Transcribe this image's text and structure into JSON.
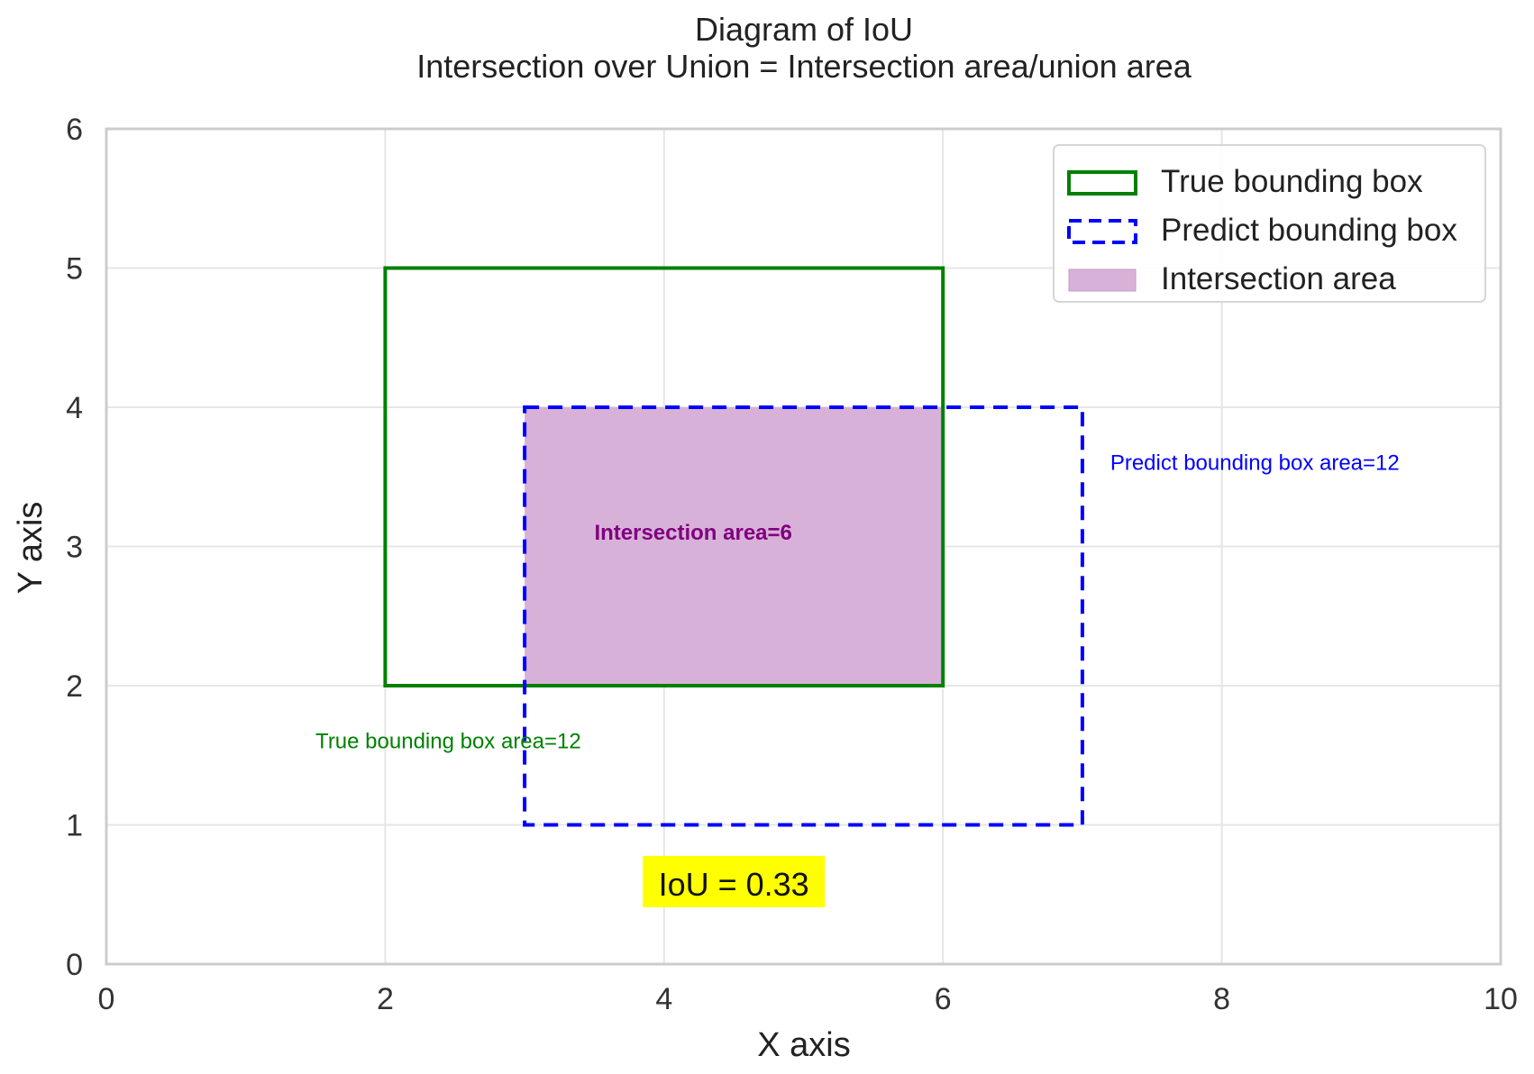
{
  "chart_data": {
    "type": "diagram",
    "title": "Diagram of IoU",
    "subtitle": "Intersection over Union = Intersection area/union area",
    "xlabel": "X axis",
    "ylabel": "Y axis",
    "xlim": [
      0,
      10
    ],
    "ylim": [
      0,
      6
    ],
    "xticks": [
      0,
      2,
      4,
      6,
      8,
      10
    ],
    "yticks": [
      0,
      1,
      2,
      3,
      4,
      5,
      6
    ],
    "grid": true,
    "legend_position": "top-right",
    "boxes": [
      {
        "name": "True bounding box",
        "x_min": 2,
        "y_min": 2,
        "x_max": 6,
        "y_max": 5,
        "style": "solid",
        "color": "#008000",
        "annotation": {
          "text": "True bounding box area=12",
          "x": 1.5,
          "y": 1.55
        }
      },
      {
        "name": "Predict bounding box",
        "x_min": 3,
        "y_min": 1,
        "x_max": 7,
        "y_max": 4,
        "style": "dashed",
        "color": "#0000ff",
        "annotation": {
          "text": "Predict bounding box area=12",
          "x": 7.2,
          "y": 3.55
        }
      }
    ],
    "intersection": {
      "name": "Intersection area",
      "x_min": 3,
      "y_min": 2,
      "x_max": 6,
      "y_max": 4,
      "color": "#800080",
      "fill_color": "#d8b1d8",
      "annotation": {
        "text": "Intersection area=6",
        "x": 3.5,
        "y": 3.05
      }
    },
    "iou_label": {
      "text": "IoU = 0.33",
      "x": 4.5,
      "y": 0.57,
      "background": "#ffff00"
    }
  }
}
